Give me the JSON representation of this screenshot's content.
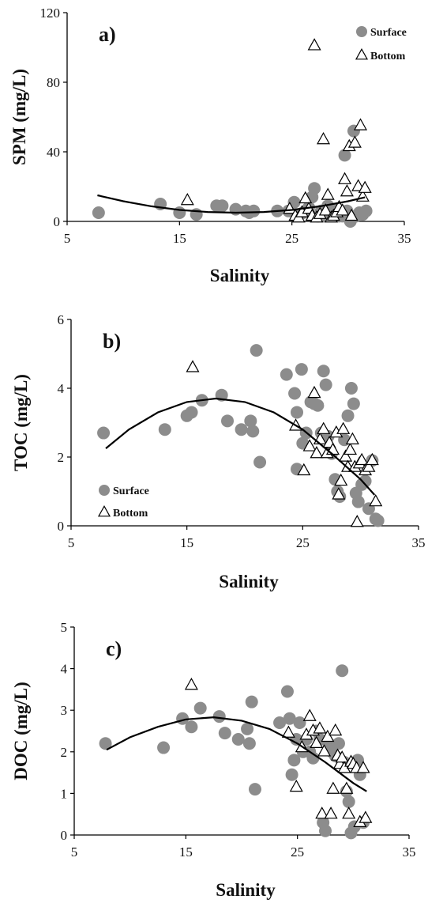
{
  "chart_data": [
    {
      "type": "scatter",
      "panel_label": "a)",
      "xlabel": "Salinity",
      "ylabel": "SPM (mg/L)",
      "xlim": [
        5,
        35
      ],
      "ylim": [
        0,
        120
      ],
      "xticks": [
        5,
        15,
        25,
        35
      ],
      "yticks": [
        0,
        40,
        80,
        120
      ],
      "legend_position": "top-right",
      "series": [
        {
          "name": "Surface",
          "marker": "filled-circle",
          "color": "#8c8c8c",
          "points": [
            [
              7.8,
              5
            ],
            [
              13.3,
              10
            ],
            [
              15,
              5
            ],
            [
              16.5,
              4
            ],
            [
              18.3,
              9
            ],
            [
              18.8,
              9
            ],
            [
              20,
              7
            ],
            [
              20.9,
              6
            ],
            [
              21.2,
              5
            ],
            [
              21.6,
              6
            ],
            [
              23.7,
              6
            ],
            [
              24.7,
              6
            ],
            [
              25.2,
              11
            ],
            [
              25.6,
              4
            ],
            [
              26,
              5
            ],
            [
              26.5,
              8
            ],
            [
              26.8,
              14
            ],
            [
              27,
              19
            ],
            [
              27.3,
              3
            ],
            [
              27.6,
              6
            ],
            [
              27.9,
              3
            ],
            [
              28.2,
              9
            ],
            [
              28.5,
              6
            ],
            [
              28.7,
              7
            ],
            [
              29,
              4
            ],
            [
              29.2,
              3
            ],
            [
              29.5,
              3
            ],
            [
              29.7,
              38
            ],
            [
              29.9,
              6
            ],
            [
              30.2,
              0
            ],
            [
              30.5,
              52
            ],
            [
              30.7,
              3
            ],
            [
              31,
              5
            ],
            [
              31.3,
              4
            ],
            [
              31.6,
              6
            ]
          ]
        },
        {
          "name": "Bottom",
          "marker": "open-triangle",
          "color": "#000000",
          "points": [
            [
              15.7,
              12
            ],
            [
              24.8,
              7
            ],
            [
              25.3,
              3
            ],
            [
              25.6,
              2
            ],
            [
              25.9,
              5
            ],
            [
              26.2,
              13
            ],
            [
              26.5,
              7
            ],
            [
              26.8,
              3
            ],
            [
              27,
              101
            ],
            [
              27.2,
              2
            ],
            [
              27.5,
              4
            ],
            [
              27.8,
              47
            ],
            [
              28,
              6
            ],
            [
              28.2,
              15
            ],
            [
              28.5,
              2
            ],
            [
              28.7,
              3
            ],
            [
              29,
              5
            ],
            [
              29.2,
              8
            ],
            [
              29.5,
              6
            ],
            [
              29.7,
              24
            ],
            [
              29.9,
              17
            ],
            [
              30.1,
              43
            ],
            [
              30.3,
              3
            ],
            [
              30.6,
              45
            ],
            [
              30.9,
              20
            ],
            [
              31.1,
              55
            ],
            [
              31.3,
              14
            ],
            [
              31.5,
              19
            ]
          ]
        },
        {
          "name": "",
          "type": "line",
          "points": [
            [
              7.7,
              15
            ],
            [
              10,
              11.6
            ],
            [
              12.5,
              8.7
            ],
            [
              15,
              6.6
            ],
            [
              17.5,
              5.4
            ],
            [
              20,
              5
            ],
            [
              22.5,
              5.4
            ],
            [
              25,
              6.6
            ],
            [
              27.5,
              8.7
            ],
            [
              30,
              11.6
            ],
            [
              31.5,
              13.8
            ]
          ]
        }
      ]
    },
    {
      "type": "scatter",
      "panel_label": "b)",
      "xlabel": "Salinity",
      "ylabel": "TOC (mg/L)",
      "xlim": [
        5,
        35
      ],
      "ylim": [
        0,
        6
      ],
      "xticks": [
        5,
        15,
        25,
        35
      ],
      "yticks": [
        0,
        2,
        4,
        6
      ],
      "legend_position": "bottom-left",
      "series": [
        {
          "name": "Surface",
          "marker": "filled-circle",
          "color": "#8c8c8c",
          "points": [
            [
              7.8,
              2.7
            ],
            [
              13.1,
              2.8
            ],
            [
              15,
              3.2
            ],
            [
              15.4,
              3.3
            ],
            [
              16.3,
              3.65
            ],
            [
              18,
              3.8
            ],
            [
              18.5,
              3.05
            ],
            [
              19.7,
              2.8
            ],
            [
              20.5,
              3.05
            ],
            [
              20.7,
              2.75
            ],
            [
              21,
              5.1
            ],
            [
              21.3,
              1.85
            ],
            [
              23.6,
              4.4
            ],
            [
              24.3,
              3.85
            ],
            [
              24.5,
              3.3
            ],
            [
              24.5,
              1.65
            ],
            [
              24.9,
              4.55
            ],
            [
              25,
              2.4
            ],
            [
              25.3,
              2.7
            ],
            [
              25.7,
              3.6
            ],
            [
              26,
              3.55
            ],
            [
              26.3,
              3.5
            ],
            [
              26.6,
              2.7
            ],
            [
              26.8,
              4.5
            ],
            [
              27,
              4.1
            ],
            [
              27.2,
              2.6
            ],
            [
              27.5,
              2.1
            ],
            [
              27.8,
              1.35
            ],
            [
              28,
              1.0
            ],
            [
              28.2,
              0.85
            ],
            [
              28.6,
              2.5
            ],
            [
              28.9,
              3.2
            ],
            [
              29.2,
              4.0
            ],
            [
              29.4,
              3.55
            ],
            [
              29.6,
              0.95
            ],
            [
              29.8,
              0.7
            ],
            [
              30.1,
              1.2
            ],
            [
              30.4,
              1.3
            ],
            [
              30.7,
              0.5
            ],
            [
              31,
              1.9
            ],
            [
              31.3,
              0.2
            ],
            [
              31.5,
              0.15
            ]
          ]
        },
        {
          "name": "Bottom",
          "marker": "open-triangle",
          "color": "#000000",
          "points": [
            [
              15.5,
              4.6
            ],
            [
              24.4,
              2.9
            ],
            [
              25.1,
              1.6
            ],
            [
              25.6,
              2.3
            ],
            [
              26,
              3.85
            ],
            [
              26.2,
              2.1
            ],
            [
              26.5,
              2.5
            ],
            [
              26.8,
              2.8
            ],
            [
              27.1,
              2.1
            ],
            [
              27.3,
              2.4
            ],
            [
              27.6,
              2.2
            ],
            [
              27.9,
              2.7
            ],
            [
              28.1,
              0.9
            ],
            [
              28.3,
              1.3
            ],
            [
              28.5,
              2.8
            ],
            [
              28.7,
              2.0
            ],
            [
              28.9,
              1.7
            ],
            [
              29.1,
              2.2
            ],
            [
              29.3,
              2.5
            ],
            [
              29.5,
              1.7
            ],
            [
              29.7,
              0.1
            ],
            [
              29.9,
              1.8
            ],
            [
              30.1,
              1.9
            ],
            [
              30.4,
              1.6
            ],
            [
              30.7,
              1.7
            ],
            [
              31,
              1.9
            ],
            [
              31.3,
              0.7
            ]
          ]
        },
        {
          "name": "",
          "type": "line",
          "points": [
            [
              8,
              2.25
            ],
            [
              10,
              2.8
            ],
            [
              12.5,
              3.3
            ],
            [
              15,
              3.6
            ],
            [
              17.5,
              3.7
            ],
            [
              20,
              3.6
            ],
            [
              22.5,
              3.3
            ],
            [
              25,
              2.8
            ],
            [
              27.5,
              2.1
            ],
            [
              30,
              1.35
            ],
            [
              31.2,
              0.9
            ]
          ]
        }
      ]
    },
    {
      "type": "scatter",
      "panel_label": "c)",
      "xlabel": "Salinity",
      "ylabel": "DOC (mg/L)",
      "xlim": [
        5,
        35
      ],
      "ylim": [
        0,
        5
      ],
      "xticks": [
        5,
        15,
        25,
        35
      ],
      "yticks": [
        0,
        1,
        2,
        3,
        4,
        5
      ],
      "series": [
        {
          "name": "",
          "marker": "filled-circle",
          "color": "#8c8c8c",
          "points": [
            [
              7.8,
              2.2
            ],
            [
              13,
              2.1
            ],
            [
              14.7,
              2.8
            ],
            [
              15.5,
              2.6
            ],
            [
              16.3,
              3.05
            ],
            [
              18,
              2.85
            ],
            [
              18.5,
              2.45
            ],
            [
              19.7,
              2.3
            ],
            [
              20.5,
              2.55
            ],
            [
              20.7,
              2.2
            ],
            [
              20.9,
              3.2
            ],
            [
              21.2,
              1.1
            ],
            [
              23.4,
              2.7
            ],
            [
              24.1,
              3.45
            ],
            [
              24.3,
              2.8
            ],
            [
              24.5,
              1.45
            ],
            [
              24.7,
              1.8
            ],
            [
              24.9,
              2.3
            ],
            [
              25.2,
              2.7
            ],
            [
              25.5,
              2.0
            ],
            [
              25.8,
              2.3
            ],
            [
              26.1,
              2.0
            ],
            [
              26.4,
              1.85
            ],
            [
              26.7,
              2.5
            ],
            [
              27,
              2.3
            ],
            [
              27.3,
              0.3
            ],
            [
              27.5,
              0.1
            ],
            [
              27.8,
              2.2
            ],
            [
              28.1,
              2.0
            ],
            [
              28.4,
              1.9
            ],
            [
              28.7,
              2.2
            ],
            [
              29,
              3.95
            ],
            [
              29.2,
              1.75
            ],
            [
              29.4,
              1.05
            ],
            [
              29.6,
              0.8
            ],
            [
              29.8,
              0.05
            ],
            [
              30.1,
              0.2
            ],
            [
              30.4,
              1.8
            ],
            [
              30.6,
              1.45
            ],
            [
              30.9,
              0.3
            ]
          ]
        },
        {
          "name": "",
          "marker": "open-triangle",
          "color": "#000000",
          "points": [
            [
              15.5,
              3.6
            ],
            [
              24.2,
              2.45
            ],
            [
              24.9,
              1.15
            ],
            [
              25.4,
              2.1
            ],
            [
              25.8,
              2.4
            ],
            [
              26.1,
              2.85
            ],
            [
              26.4,
              2.5
            ],
            [
              26.7,
              2.2
            ],
            [
              27,
              2.55
            ],
            [
              27.2,
              0.5
            ],
            [
              27.4,
              2.0
            ],
            [
              27.7,
              2.35
            ],
            [
              28,
              0.5
            ],
            [
              28.2,
              1.1
            ],
            [
              28.4,
              2.5
            ],
            [
              28.6,
              1.9
            ],
            [
              28.8,
              1.7
            ],
            [
              29,
              1.85
            ],
            [
              29.2,
              1.6
            ],
            [
              29.4,
              1.1
            ],
            [
              29.6,
              0.5
            ],
            [
              29.8,
              1.75
            ],
            [
              30,
              1.7
            ],
            [
              30.3,
              1.6
            ],
            [
              30.6,
              0.3
            ],
            [
              30.9,
              1.6
            ],
            [
              31.1,
              0.4
            ]
          ]
        },
        {
          "name": "",
          "type": "line",
          "points": [
            [
              7.9,
              2.05
            ],
            [
              10,
              2.35
            ],
            [
              12.5,
              2.6
            ],
            [
              15,
              2.78
            ],
            [
              17.5,
              2.83
            ],
            [
              20,
              2.75
            ],
            [
              22.5,
              2.55
            ],
            [
              25,
              2.2
            ],
            [
              27.5,
              1.75
            ],
            [
              30,
              1.25
            ],
            [
              31.2,
              1.05
            ]
          ]
        }
      ]
    }
  ]
}
